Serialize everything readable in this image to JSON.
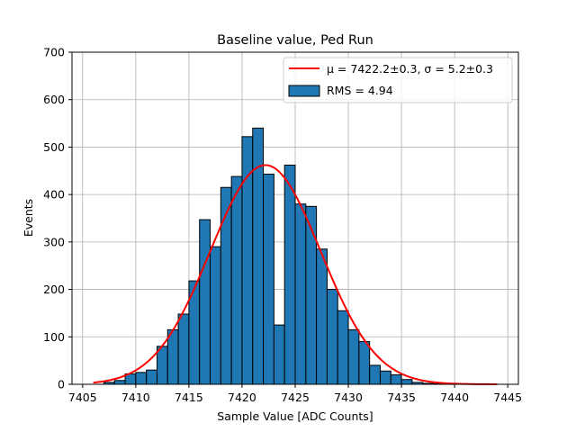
{
  "chart_data": {
    "type": "bar",
    "title": "Baseline value, Ped Run",
    "xlabel": "Sample Value [ADC Counts]",
    "ylabel": "Events",
    "xlim": [
      7404,
      7446
    ],
    "ylim": [
      0,
      700
    ],
    "xticks": [
      7405,
      7410,
      7415,
      7420,
      7425,
      7430,
      7435,
      7440,
      7445
    ],
    "yticks": [
      0,
      100,
      200,
      300,
      400,
      500,
      600,
      700
    ],
    "grid": true,
    "legend_position": "top-right",
    "histogram": {
      "name": "RMS = 4.94",
      "color": "#1f77b4",
      "edge_color": "#000000",
      "bin_edges": [
        7407,
        7408,
        7409,
        7410,
        7411,
        7412,
        7413,
        7414,
        7415,
        7416,
        7417,
        7418,
        7419,
        7420,
        7421,
        7422,
        7423,
        7424,
        7425,
        7426,
        7427,
        7428,
        7429,
        7430,
        7431,
        7432,
        7433,
        7434,
        7435,
        7436,
        7437,
        7438,
        7439,
        7440
      ],
      "counts": [
        4,
        8,
        22,
        25,
        30,
        80,
        115,
        148,
        218,
        347,
        290,
        415,
        438,
        522,
        540,
        443,
        125,
        462,
        380,
        375,
        285,
        200,
        155,
        115,
        90,
        40,
        28,
        20,
        10,
        4,
        2,
        1,
        1
      ]
    },
    "fit_curve": {
      "name_prefix": "μ = 7422.2±0.3, ",
      "name_suffix": "σ = 5.2±0.3",
      "color": "#ff0000",
      "mu": 7422.2,
      "sigma": 5.2,
      "amplitude": 462,
      "x_range": [
        7406,
        7444
      ]
    }
  }
}
